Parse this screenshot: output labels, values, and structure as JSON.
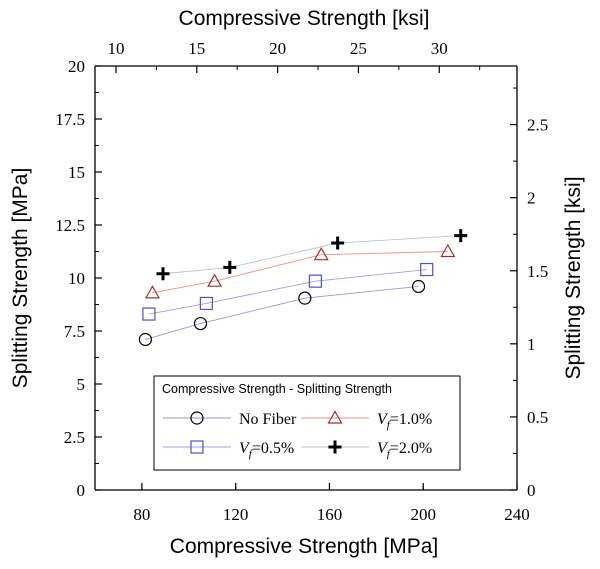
{
  "chart_data": {
    "type": "line",
    "title": "",
    "xlabel": "Compressive Strength [MPa]",
    "ylabel": "Splitting Strength [MPa]",
    "x2label": "Compressive Strength [ksi]",
    "y2label": "Splitting Strength [ksi]",
    "xlim": [
      60,
      240
    ],
    "ylim": [
      0,
      20
    ],
    "x2lim": [
      8.702,
      34.81
    ],
    "y2lim": [
      0,
      2.9008
    ],
    "grid": false,
    "legend_position": "bottom-center",
    "legend_title": "Compressive Strength - Splitting Strength",
    "x_ticks": [
      {
        "value": 80,
        "label": "80"
      },
      {
        "value": 120,
        "label": "120"
      },
      {
        "value": 160,
        "label": "160"
      },
      {
        "value": 200,
        "label": "200"
      },
      {
        "value": 240,
        "label": "240"
      }
    ],
    "y_ticks": [
      {
        "value": 0,
        "label": "0"
      },
      {
        "value": 2.5,
        "label": "2.5"
      },
      {
        "value": 5,
        "label": "5"
      },
      {
        "value": 7.5,
        "label": "7.5"
      },
      {
        "value": 10,
        "label": "10"
      },
      {
        "value": 12.5,
        "label": "12.5"
      },
      {
        "value": 15,
        "label": "15"
      },
      {
        "value": 17.5,
        "label": "17.5"
      },
      {
        "value": 20,
        "label": "20"
      }
    ],
    "x2_ticks": [
      {
        "value": 10,
        "label": "10"
      },
      {
        "value": 15,
        "label": "15"
      },
      {
        "value": 20,
        "label": "20"
      },
      {
        "value": 25,
        "label": "25"
      },
      {
        "value": 30,
        "label": "30"
      }
    ],
    "y2_ticks": [
      {
        "value": 0,
        "label": "0"
      },
      {
        "value": 0.5,
        "label": "0.5"
      },
      {
        "value": 1,
        "label": "1"
      },
      {
        "value": 1.5,
        "label": "1.5"
      },
      {
        "value": 2,
        "label": "2"
      },
      {
        "value": 2.5,
        "label": "2.5"
      }
    ],
    "series": [
      {
        "name": "No Fiber",
        "marker": "circle",
        "color": "#000000",
        "line_color": "#9a9ac2",
        "x": [
          81.5,
          105,
          149.5,
          198
        ],
        "y": [
          7.1,
          7.85,
          9.05,
          9.6
        ]
      },
      {
        "name": "V_f=0.5%",
        "name_main": "V",
        "name_sub": "f",
        "name_rest": "=0.5%",
        "marker": "square",
        "color": "#5050c8",
        "line_color": "#a0a0e0",
        "x": [
          83,
          107.5,
          154,
          201.5
        ],
        "y": [
          8.3,
          8.8,
          9.85,
          10.4
        ]
      },
      {
        "name": "V_f=1.0%",
        "name_main": "V",
        "name_sub": "f",
        "name_rest": "=1.0%",
        "marker": "triangle",
        "color": "#a03030",
        "line_color": "#e89090",
        "x": [
          84.5,
          111,
          156.5,
          210.5
        ],
        "y": [
          9.3,
          9.85,
          11.1,
          11.25
        ]
      },
      {
        "name": "V_f=2.0%",
        "name_main": "V",
        "name_sub": "f",
        "name_rest": "=2.0%",
        "marker": "plus",
        "color": "#000000",
        "line_color": "#c0c0c0",
        "x": [
          89,
          117.5,
          163.5,
          216
        ],
        "y": [
          10.2,
          10.5,
          11.65,
          12
        ]
      }
    ]
  }
}
